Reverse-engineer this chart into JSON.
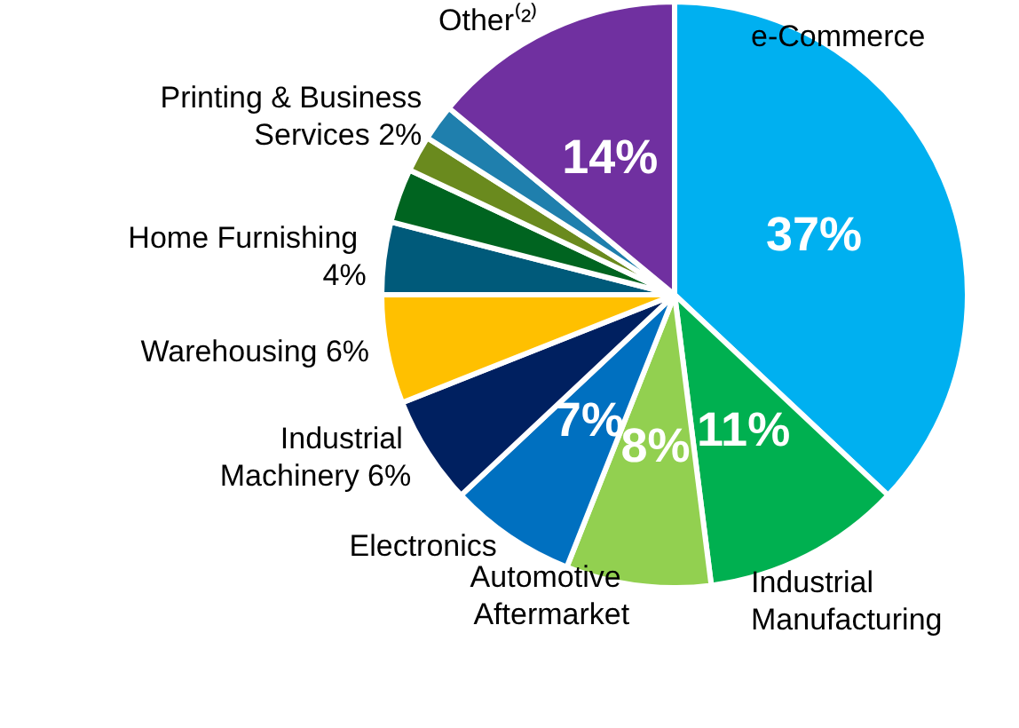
{
  "chart_data": {
    "type": "pie",
    "categories": [
      "e-Commerce",
      "Industrial Manufacturing",
      "Automotive Aftermarket",
      "Electronics",
      "Industrial Machinery 6%",
      "Warehousing 6%",
      "Home Furnishing 4%",
      null,
      null,
      "Printing & Business Services 2%",
      "Other⁽²⁾"
    ],
    "values": [
      37,
      11,
      8,
      7,
      6,
      6,
      4,
      3,
      2,
      2,
      14
    ],
    "colors": [
      "#00b0f0",
      "#00b050",
      "#92d050",
      "#0070c0",
      "#002060",
      "#ffc000",
      "#005a7a",
      "#006420",
      "#6a8a1e",
      "#1f7fad",
      "#7030a0"
    ],
    "value_labels": [
      "37%",
      "11%",
      "8%",
      "7%",
      null,
      null,
      null,
      null,
      null,
      null,
      "14%"
    ],
    "legend": false
  }
}
